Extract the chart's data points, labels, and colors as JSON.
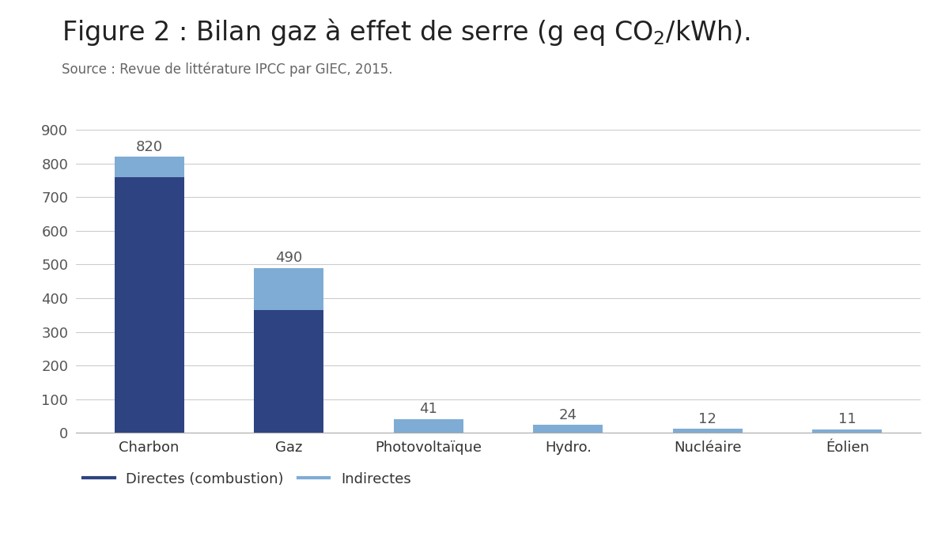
{
  "source": "Source : Revue de littérature IPCC par GIEC, 2015.",
  "categories": [
    "Charbon",
    "Gaz",
    "Photovoltaïque",
    "Hydro.",
    "Nucléaire",
    "Éolien"
  ],
  "direct_values": [
    760,
    365,
    0,
    0,
    0,
    0
  ],
  "indirect_values": [
    60,
    125,
    41,
    24,
    12,
    11
  ],
  "totals": [
    820,
    490,
    41,
    24,
    12,
    11
  ],
  "color_direct": "#2e4482",
  "color_indirect": "#7facd4",
  "background_color": "#ffffff",
  "ylim": [
    0,
    900
  ],
  "yticks": [
    0,
    100,
    200,
    300,
    400,
    500,
    600,
    700,
    800,
    900
  ],
  "legend_direct": "Directes (combustion)",
  "legend_indirect": "Indirectes",
  "bar_width": 0.5,
  "title_fontsize": 24,
  "source_fontsize": 12,
  "label_fontsize": 13,
  "tick_fontsize": 13,
  "legend_fontsize": 13
}
